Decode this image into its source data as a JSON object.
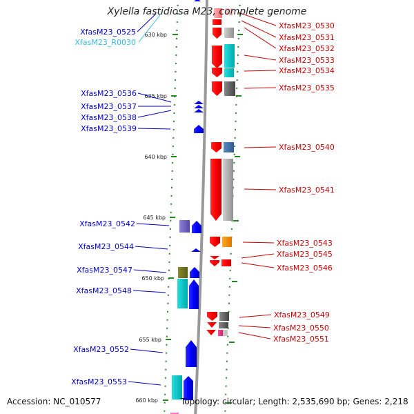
{
  "title": "Xylella fastidiosa M23, complete genome",
  "footer": {
    "accession": "Accession: NC_010577",
    "summary": "Topology: circular; Length: 2,535,690 bp; Genes: 2,218"
  },
  "ticks": [
    {
      "label": "630 kbp"
    },
    {
      "label": "635 kbp"
    },
    {
      "label": "640 kbp"
    },
    {
      "label": "645 kbp"
    },
    {
      "label": "650 kbp"
    },
    {
      "label": "655 kbp"
    },
    {
      "label": "660 kbp"
    }
  ],
  "colors": {
    "reverse_label": "#cc0000",
    "forward_label": "#0000cc",
    "rna_label": "#33bbdd",
    "backbone": "#999999",
    "tick": "#228822"
  },
  "genes_forward": [
    {
      "label": "XfasM23_0525",
      "color": "#0000cc"
    },
    {
      "label": "XfasM23_R0030",
      "color": "#33bbdd"
    },
    {
      "label": "XfasM23_0536",
      "color": "#0000cc"
    },
    {
      "label": "XfasM23_0537",
      "color": "#0000cc"
    },
    {
      "label": "XfasM23_0538",
      "color": "#0000cc"
    },
    {
      "label": "XfasM23_0539",
      "color": "#0000cc"
    },
    {
      "label": "XfasM23_0542",
      "color": "#0000cc"
    },
    {
      "label": "XfasM23_0544",
      "color": "#0000cc"
    },
    {
      "label": "XfasM23_0547",
      "color": "#0000cc"
    },
    {
      "label": "XfasM23_0548",
      "color": "#0000cc"
    },
    {
      "label": "XfasM23_0552",
      "color": "#0000cc"
    },
    {
      "label": "XfasM23_0553",
      "color": "#0000cc"
    }
  ],
  "genes_reverse": [
    {
      "label": "XfasM23_0530"
    },
    {
      "label": "XfasM23_0531"
    },
    {
      "label": "XfasM23_0532"
    },
    {
      "label": "XfasM23_0533"
    },
    {
      "label": "XfasM23_0534"
    },
    {
      "label": "XfasM23_0535"
    },
    {
      "label": "XfasM23_0540"
    },
    {
      "label": "XfasM23_0541"
    },
    {
      "label": "XfasM23_0543"
    },
    {
      "label": "XfasM23_0545"
    },
    {
      "label": "XfasM23_0546"
    },
    {
      "label": "XfasM23_0549"
    },
    {
      "label": "XfasM23_0550"
    },
    {
      "label": "XfasM23_0551"
    }
  ]
}
